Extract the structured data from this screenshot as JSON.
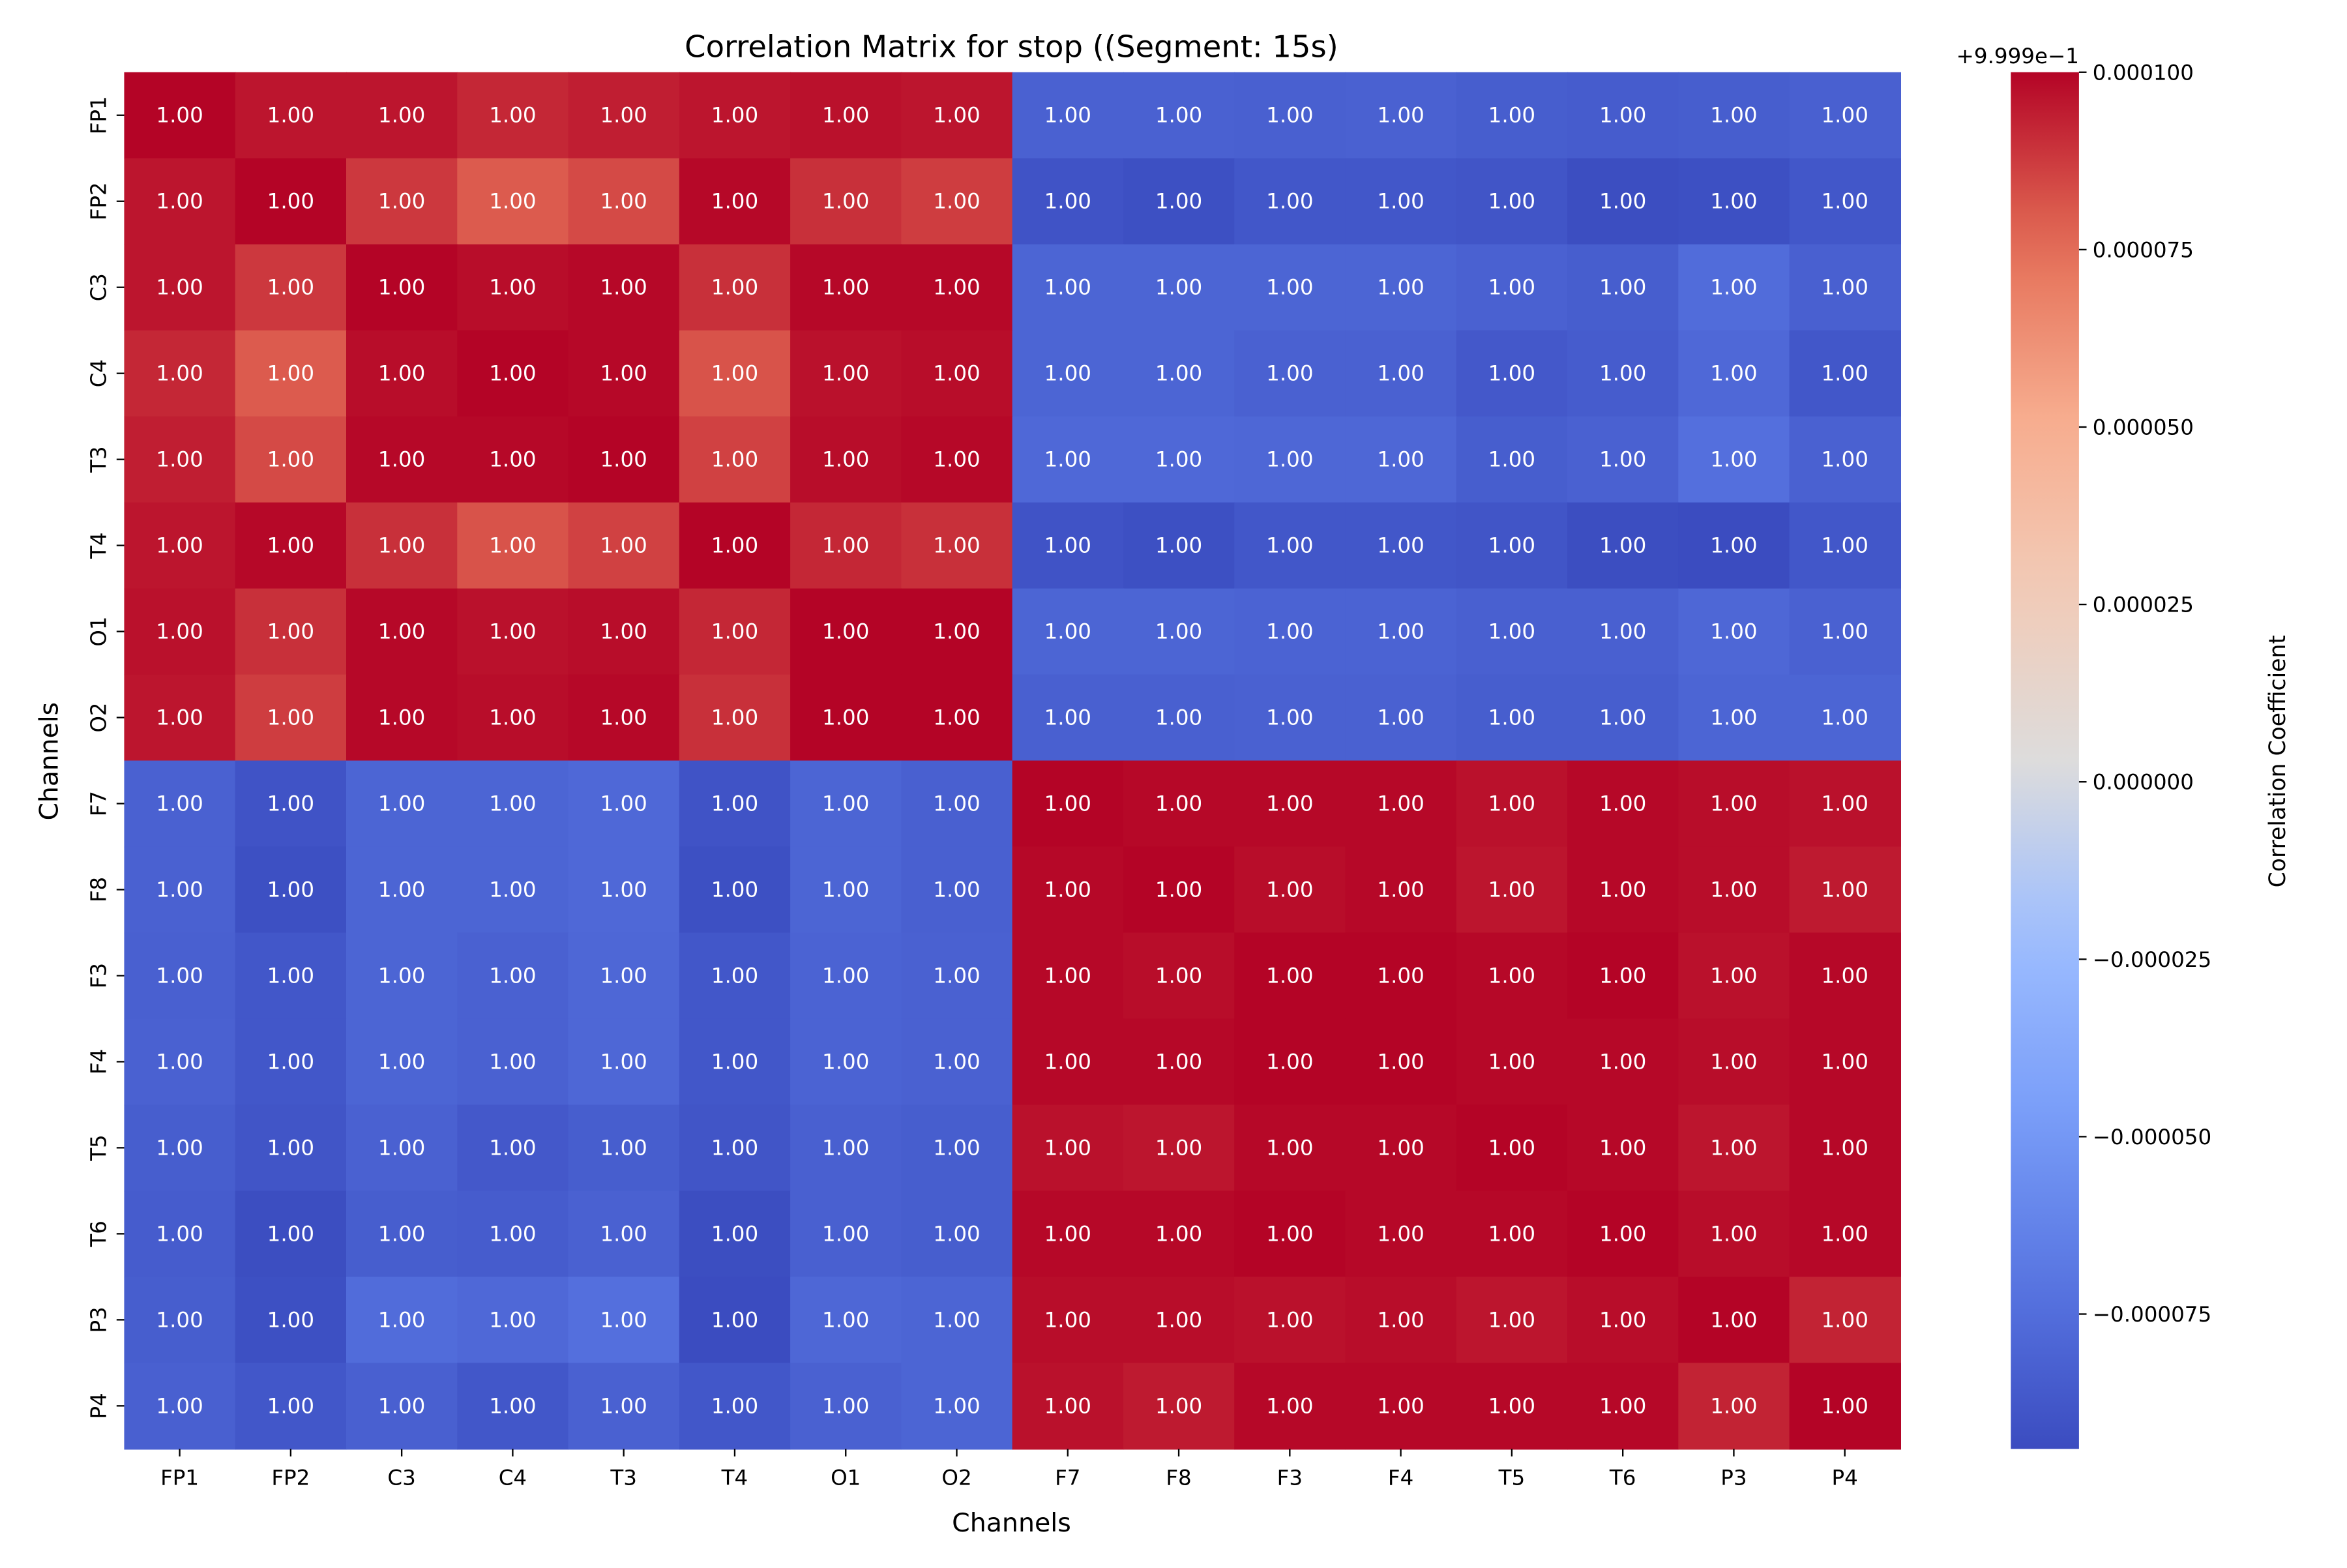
{
  "chart_data": {
    "type": "heatmap",
    "title": "Correlation Matrix for stop ((Segment: 15s)",
    "xlabel": "Channels",
    "ylabel": "Channels",
    "x_categories": [
      "FP1",
      "FP2",
      "C3",
      "C4",
      "T3",
      "T4",
      "O1",
      "O2",
      "F7",
      "F8",
      "F3",
      "F4",
      "T5",
      "T6",
      "P3",
      "P4"
    ],
    "y_categories": [
      "FP1",
      "FP2",
      "C3",
      "C4",
      "T3",
      "T4",
      "O1",
      "O2",
      "F7",
      "F8",
      "F3",
      "F4",
      "T5",
      "T6",
      "P3",
      "P4"
    ],
    "annotation_format": "0.00",
    "colormap": "coolwarm",
    "color_range": [
      0.999806,
      1.0
    ],
    "colorbar": {
      "label": "Correlation Coefficient",
      "offset_text": "+9.999e−1",
      "ticks": [
        0.0001,
        7.5e-05,
        5e-05,
        2.5e-05,
        0.0,
        -2.5e-05,
        -5e-05,
        -7.5e-05
      ],
      "tick_labels": [
        "0.000100",
        "0.000075",
        "0.000050",
        "0.000025",
        "0.000000",
        "−0.000025",
        "−0.000050",
        "−0.000075"
      ]
    },
    "values": [
      [
        1.0,
        0.999996,
        0.999996,
        0.999992,
        0.999994,
        0.999996,
        0.999997,
        0.999996,
        0.999818,
        0.999818,
        0.999817,
        0.999818,
        0.999816,
        0.999815,
        0.999816,
        0.999817
      ],
      [
        0.999996,
        1.0,
        0.999988,
        0.99998,
        0.999984,
        0.999999,
        0.99999,
        0.999987,
        0.99981,
        0.999808,
        0.999812,
        0.999812,
        0.999811,
        0.999807,
        0.999808,
        0.999812
      ],
      [
        0.999996,
        0.999988,
        1.0,
        0.999998,
        0.999999,
        0.99999,
        0.999999,
        0.999999,
        0.99982,
        0.99982,
        0.99982,
        0.99982,
        0.999818,
        0.999816,
        0.999824,
        0.999817
      ],
      [
        0.999992,
        0.99998,
        0.999998,
        1.0,
        0.999999,
        0.999982,
        0.999997,
        0.999998,
        0.99982,
        0.99982,
        0.999818,
        0.999818,
        0.999813,
        0.999815,
        0.999822,
        0.999812
      ],
      [
        0.999994,
        0.999984,
        0.999999,
        0.999999,
        1.0,
        0.999986,
        0.999998,
        0.999999,
        0.999822,
        0.999822,
        0.999821,
        0.999821,
        0.999816,
        0.999818,
        0.999826,
        0.999818
      ],
      [
        0.999996,
        0.999999,
        0.99999,
        0.999982,
        0.999986,
        1.0,
        0.999992,
        0.99999,
        0.99981,
        0.999808,
        0.999812,
        0.999812,
        0.999811,
        0.999807,
        0.999806,
        0.999812
      ],
      [
        0.999997,
        0.99999,
        0.999999,
        0.999997,
        0.999998,
        0.999992,
        1.0,
        1.0,
        0.99982,
        0.99982,
        0.999819,
        0.999819,
        0.999817,
        0.999817,
        0.999821,
        0.999818
      ],
      [
        0.999996,
        0.999987,
        0.999999,
        0.999998,
        0.999999,
        0.99999,
        1.0,
        1.0,
        0.999817,
        0.999817,
        0.999818,
        0.999818,
        0.999816,
        0.999816,
        0.99982,
        0.99982
      ],
      [
        0.999818,
        0.99981,
        0.99982,
        0.99982,
        0.999822,
        0.99981,
        0.99982,
        0.999817,
        1.0,
        0.999999,
        0.999999,
        0.999999,
        0.999997,
        0.999999,
        0.999998,
        0.999997
      ],
      [
        0.999818,
        0.999808,
        0.99982,
        0.99982,
        0.999822,
        0.999808,
        0.99982,
        0.999817,
        0.999999,
        1.0,
        0.999998,
        0.999999,
        0.999996,
        0.999999,
        0.999998,
        0.999995
      ],
      [
        0.999817,
        0.999812,
        0.99982,
        0.999818,
        0.999821,
        0.999812,
        0.999819,
        0.999818,
        0.999999,
        0.999998,
        1.0,
        1.0,
        0.999999,
        1.0,
        0.999997,
        0.999999
      ],
      [
        0.999818,
        0.999812,
        0.99982,
        0.999818,
        0.999821,
        0.999812,
        0.999819,
        0.999818,
        0.999999,
        0.999999,
        1.0,
        1.0,
        0.999999,
        0.999999,
        0.999998,
        0.999999
      ],
      [
        0.999816,
        0.999811,
        0.999818,
        0.999813,
        0.999816,
        0.999811,
        0.999817,
        0.999816,
        0.999997,
        0.999996,
        0.999999,
        0.999999,
        1.0,
        0.999999,
        0.999996,
        0.999999
      ],
      [
        0.999815,
        0.999807,
        0.999816,
        0.999815,
        0.999818,
        0.999807,
        0.999817,
        0.999816,
        0.999999,
        0.999999,
        1.0,
        0.999999,
        0.999999,
        1.0,
        0.999998,
        0.999999
      ],
      [
        0.999816,
        0.999808,
        0.999824,
        0.999822,
        0.999826,
        0.999806,
        0.999821,
        0.99982,
        0.999998,
        0.999998,
        0.999997,
        0.999998,
        0.999996,
        0.999998,
        1.0,
        0.999993
      ],
      [
        0.999817,
        0.999812,
        0.999817,
        0.999812,
        0.999818,
        0.999812,
        0.999818,
        0.99982,
        0.999997,
        0.999995,
        0.999999,
        0.999999,
        0.999999,
        0.999999,
        0.999993,
        1.0
      ]
    ]
  }
}
